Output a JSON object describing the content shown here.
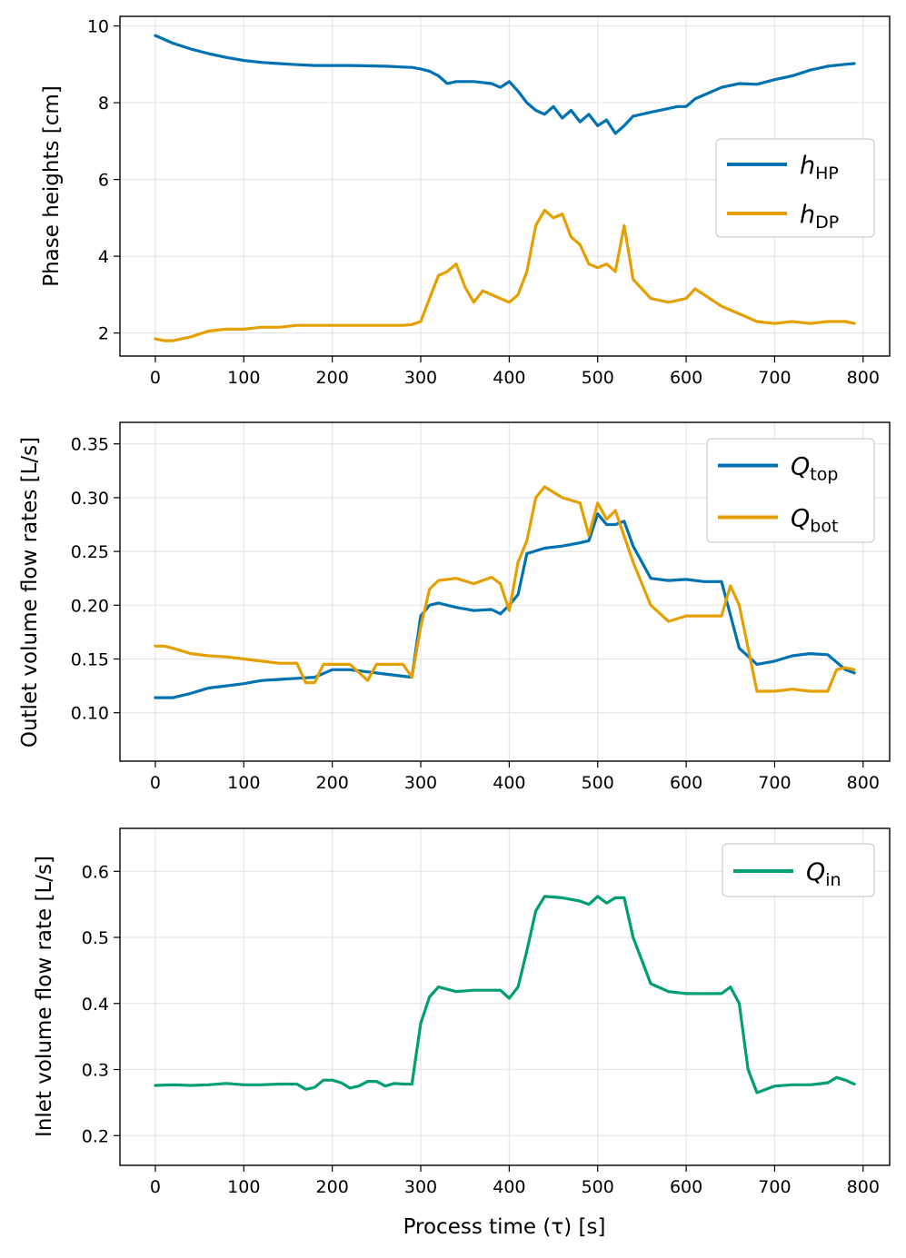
{
  "colors": {
    "blue": "#0072b2",
    "orange": "#e69f00",
    "green": "#009e73"
  },
  "chart_data": [
    {
      "type": "line",
      "id": "phase-heights",
      "xlabel": "",
      "ylabel": "Phase heights [cm]",
      "xlim": [
        -40,
        830
      ],
      "ylim": [
        1.4,
        10.25
      ],
      "xticks": [
        0,
        100,
        200,
        300,
        400,
        500,
        600,
        700,
        800
      ],
      "yticks": [
        2,
        4,
        6,
        8,
        10
      ],
      "grid": true,
      "legend_position": "center-right",
      "series": [
        {
          "name": "h_HP",
          "label_main": "h",
          "label_sub": "HP",
          "color": "#0072b2",
          "x": [
            0,
            10,
            20,
            40,
            60,
            80,
            100,
            120,
            140,
            160,
            180,
            200,
            220,
            240,
            260,
            280,
            290,
            300,
            310,
            320,
            330,
            340,
            360,
            380,
            390,
            400,
            410,
            420,
            430,
            440,
            450,
            460,
            470,
            480,
            490,
            500,
            510,
            520,
            530,
            540,
            560,
            580,
            590,
            600,
            610,
            620,
            640,
            660,
            680,
            700,
            720,
            740,
            760,
            780,
            790
          ],
          "y": [
            9.75,
            9.65,
            9.55,
            9.4,
            9.28,
            9.18,
            9.1,
            9.05,
            9.02,
            8.99,
            8.97,
            8.97,
            8.97,
            8.96,
            8.95,
            8.93,
            8.92,
            8.88,
            8.82,
            8.7,
            8.5,
            8.55,
            8.55,
            8.5,
            8.4,
            8.55,
            8.3,
            8.0,
            7.8,
            7.7,
            7.9,
            7.6,
            7.8,
            7.5,
            7.7,
            7.4,
            7.55,
            7.2,
            7.4,
            7.65,
            7.75,
            7.85,
            7.9,
            7.9,
            8.1,
            8.2,
            8.4,
            8.5,
            8.48,
            8.6,
            8.7,
            8.85,
            8.95,
            9.0,
            9.02
          ]
        },
        {
          "name": "h_DP",
          "label_main": "h",
          "label_sub": "DP",
          "color": "#e69f00",
          "x": [
            0,
            10,
            20,
            40,
            60,
            80,
            100,
            120,
            140,
            160,
            180,
            200,
            220,
            240,
            260,
            280,
            290,
            300,
            310,
            320,
            330,
            340,
            350,
            360,
            370,
            380,
            390,
            400,
            410,
            420,
            430,
            440,
            450,
            460,
            470,
            480,
            490,
            500,
            510,
            520,
            530,
            540,
            560,
            580,
            600,
            610,
            620,
            640,
            660,
            680,
            700,
            720,
            740,
            760,
            780,
            790
          ],
          "y": [
            1.85,
            1.8,
            1.8,
            1.9,
            2.05,
            2.1,
            2.1,
            2.15,
            2.15,
            2.2,
            2.2,
            2.2,
            2.2,
            2.2,
            2.2,
            2.2,
            2.22,
            2.3,
            2.9,
            3.5,
            3.6,
            3.8,
            3.2,
            2.8,
            3.1,
            3.0,
            2.9,
            2.8,
            3.0,
            3.6,
            4.8,
            5.2,
            5.0,
            5.1,
            4.5,
            4.3,
            3.8,
            3.7,
            3.8,
            3.6,
            4.8,
            3.4,
            2.9,
            2.8,
            2.9,
            3.15,
            3.0,
            2.7,
            2.5,
            2.3,
            2.25,
            2.3,
            2.25,
            2.3,
            2.3,
            2.25
          ]
        }
      ]
    },
    {
      "type": "line",
      "id": "outlet-flows",
      "xlabel": "",
      "ylabel": "Outlet volume flow rates [L/s]",
      "xlim": [
        -40,
        830
      ],
      "ylim": [
        0.055,
        0.37
      ],
      "xticks": [
        0,
        100,
        200,
        300,
        400,
        500,
        600,
        700,
        800
      ],
      "yticks": [
        0.1,
        0.15,
        0.2,
        0.25,
        0.3,
        0.35
      ],
      "ytick_labels": [
        "0.10",
        "0.15",
        "0.20",
        "0.25",
        "0.30",
        "0.35"
      ],
      "grid": true,
      "legend_position": "top-right",
      "series": [
        {
          "name": "Q_top",
          "label_main": "Q",
          "label_sub": "top",
          "color": "#0072b2",
          "x": [
            0,
            20,
            40,
            60,
            80,
            100,
            120,
            140,
            160,
            180,
            200,
            220,
            240,
            260,
            280,
            290,
            300,
            310,
            320,
            340,
            360,
            380,
            390,
            400,
            410,
            420,
            440,
            460,
            480,
            490,
            500,
            510,
            520,
            530,
            540,
            560,
            580,
            600,
            620,
            640,
            660,
            680,
            700,
            720,
            740,
            760,
            780,
            790
          ],
          "y": [
            0.114,
            0.114,
            0.118,
            0.123,
            0.125,
            0.127,
            0.13,
            0.131,
            0.132,
            0.133,
            0.14,
            0.14,
            0.138,
            0.136,
            0.134,
            0.133,
            0.19,
            0.2,
            0.202,
            0.198,
            0.195,
            0.196,
            0.192,
            0.2,
            0.21,
            0.248,
            0.253,
            0.255,
            0.258,
            0.26,
            0.285,
            0.275,
            0.275,
            0.278,
            0.255,
            0.225,
            0.223,
            0.224,
            0.222,
            0.222,
            0.16,
            0.145,
            0.148,
            0.153,
            0.155,
            0.154,
            0.14,
            0.137
          ]
        },
        {
          "name": "Q_bot",
          "label_main": "Q",
          "label_sub": "bot",
          "color": "#e69f00",
          "x": [
            0,
            10,
            20,
            40,
            60,
            80,
            100,
            120,
            140,
            160,
            170,
            180,
            190,
            200,
            220,
            240,
            250,
            260,
            280,
            290,
            300,
            310,
            320,
            340,
            360,
            380,
            390,
            400,
            410,
            420,
            430,
            440,
            460,
            480,
            490,
            500,
            510,
            520,
            540,
            560,
            580,
            600,
            620,
            640,
            650,
            660,
            680,
            700,
            720,
            740,
            760,
            770,
            780,
            790
          ],
          "y": [
            0.162,
            0.162,
            0.16,
            0.155,
            0.153,
            0.152,
            0.15,
            0.148,
            0.146,
            0.146,
            0.128,
            0.128,
            0.145,
            0.145,
            0.145,
            0.13,
            0.145,
            0.145,
            0.145,
            0.133,
            0.18,
            0.215,
            0.223,
            0.225,
            0.22,
            0.226,
            0.22,
            0.195,
            0.24,
            0.26,
            0.3,
            0.31,
            0.3,
            0.295,
            0.265,
            0.295,
            0.28,
            0.288,
            0.24,
            0.2,
            0.185,
            0.19,
            0.19,
            0.19,
            0.218,
            0.2,
            0.12,
            0.12,
            0.122,
            0.12,
            0.12,
            0.14,
            0.142,
            0.14
          ]
        }
      ]
    },
    {
      "type": "line",
      "id": "inlet-flow",
      "xlabel": "Process time (τ) [s]",
      "ylabel": "Inlet volume flow rate [L/s]",
      "xlim": [
        -40,
        830
      ],
      "ylim": [
        0.155,
        0.665
      ],
      "xticks": [
        0,
        100,
        200,
        300,
        400,
        500,
        600,
        700,
        800
      ],
      "yticks": [
        0.2,
        0.3,
        0.4,
        0.5,
        0.6
      ],
      "ytick_labels": [
        "0.2",
        "0.3",
        "0.4",
        "0.5",
        "0.6"
      ],
      "grid": true,
      "legend_position": "top-right",
      "series": [
        {
          "name": "Q_in",
          "label_main": "Q",
          "label_sub": "in",
          "color": "#009e73",
          "x": [
            0,
            20,
            40,
            60,
            80,
            100,
            120,
            140,
            160,
            170,
            180,
            190,
            200,
            210,
            220,
            230,
            240,
            250,
            260,
            270,
            280,
            290,
            300,
            310,
            320,
            340,
            360,
            380,
            390,
            400,
            410,
            420,
            430,
            440,
            460,
            480,
            490,
            500,
            510,
            520,
            530,
            540,
            560,
            580,
            600,
            620,
            640,
            650,
            660,
            670,
            680,
            700,
            720,
            740,
            760,
            770,
            780,
            790
          ],
          "y": [
            0.276,
            0.277,
            0.276,
            0.277,
            0.279,
            0.277,
            0.277,
            0.278,
            0.278,
            0.27,
            0.273,
            0.284,
            0.284,
            0.28,
            0.272,
            0.275,
            0.282,
            0.282,
            0.275,
            0.279,
            0.278,
            0.278,
            0.37,
            0.41,
            0.425,
            0.418,
            0.42,
            0.42,
            0.42,
            0.408,
            0.425,
            0.48,
            0.54,
            0.562,
            0.56,
            0.555,
            0.55,
            0.562,
            0.552,
            0.56,
            0.56,
            0.5,
            0.43,
            0.418,
            0.415,
            0.415,
            0.415,
            0.425,
            0.4,
            0.3,
            0.265,
            0.275,
            0.277,
            0.277,
            0.28,
            0.288,
            0.284,
            0.278
          ]
        }
      ]
    }
  ]
}
